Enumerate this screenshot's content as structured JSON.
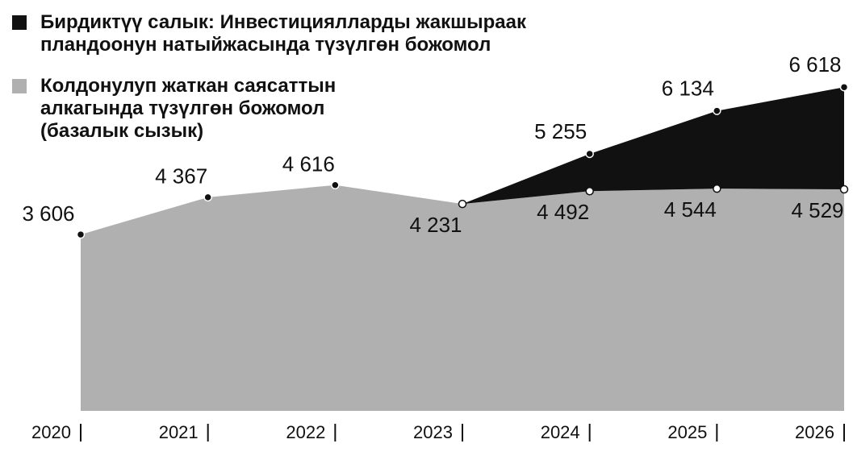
{
  "chart_data": {
    "type": "area",
    "categories": [
      "2020",
      "2021",
      "2022",
      "2023",
      "2024",
      "2025",
      "2026"
    ],
    "series": [
      {
        "name": "Бирдиктүү салык: Инвестициялларды жакшыраак пландоонун натыйжасында түзүлгөн божомол",
        "color": "#111111",
        "values": [
          null,
          null,
          null,
          4231,
          5255,
          6134,
          6618
        ],
        "value_labels": [
          null,
          null,
          null,
          null,
          "5 255",
          "6 134",
          "6 618"
        ]
      },
      {
        "name": "Колдонулуп жаткан саясаттын алкагында түзүлгөн божомол (базалык сызык)",
        "color": "#b0b0b0",
        "values": [
          3606,
          4367,
          4616,
          4231,
          4492,
          4544,
          4529
        ],
        "value_labels": [
          "3 606",
          "4 367",
          "4 616",
          "4 231",
          "4 492",
          "4 544",
          "4 529"
        ]
      }
    ],
    "ylim": [
      0,
      7000
    ],
    "legend": "top-left"
  }
}
